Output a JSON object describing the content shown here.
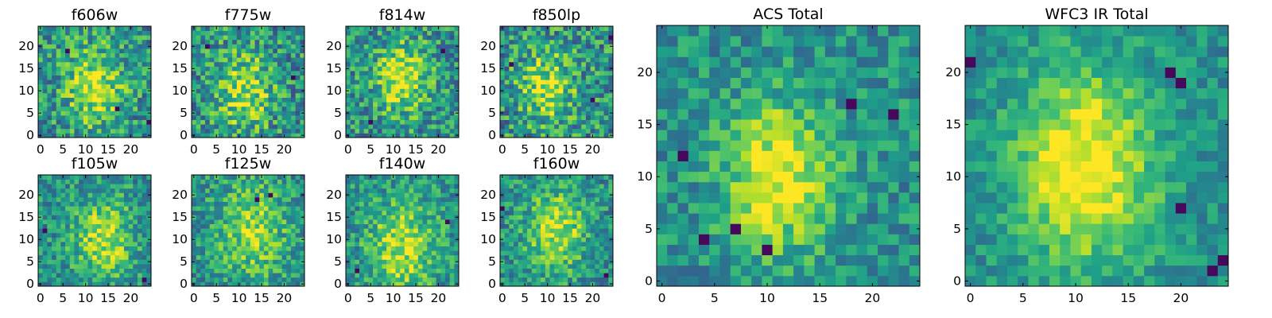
{
  "chart_data": [
    {
      "type": "heatmap",
      "title": "f606w",
      "x_ticks": [
        "0",
        "5",
        "10",
        "15",
        "20"
      ],
      "y_ticks": [
        "0",
        "5",
        "10",
        "15",
        "20"
      ],
      "xlim": [
        0,
        25
      ],
      "ylim": [
        0,
        25
      ],
      "grid_size": 25,
      "colormap": "viridis",
      "peak": {
        "x": 12,
        "y": 11
      },
      "seed": 11,
      "blob_strength": 0.42,
      "noise": 0.55,
      "spread": 5,
      "dark_pixels": [
        [
          17,
          6
        ],
        [
          6,
          19
        ],
        [
          24,
          3
        ]
      ]
    },
    {
      "type": "heatmap",
      "title": "f775w",
      "x_ticks": [
        "0",
        "5",
        "10",
        "15",
        "20"
      ],
      "y_ticks": [
        "0",
        "5",
        "10",
        "15",
        "20"
      ],
      "xlim": [
        0,
        25
      ],
      "ylim": [
        0,
        25
      ],
      "grid_size": 25,
      "colormap": "viridis",
      "peak": {
        "x": 11,
        "y": 10
      },
      "seed": 23,
      "blob_strength": 0.38,
      "noise": 0.58,
      "spread": 5,
      "dark_pixels": [
        [
          3,
          20
        ],
        [
          22,
          13
        ]
      ]
    },
    {
      "type": "heatmap",
      "title": "f814w",
      "x_ticks": [
        "0",
        "5",
        "10",
        "15",
        "20"
      ],
      "y_ticks": [
        "0",
        "5",
        "10",
        "15",
        "20"
      ],
      "xlim": [
        0,
        25
      ],
      "ylim": [
        0,
        25
      ],
      "grid_size": 25,
      "colormap": "viridis",
      "peak": {
        "x": 12,
        "y": 13
      },
      "seed": 37,
      "blob_strength": 0.45,
      "noise": 0.55,
      "spread": 4.5,
      "dark_pixels": [
        [
          21,
          19
        ],
        [
          5,
          3
        ]
      ]
    },
    {
      "type": "heatmap",
      "title": "f850lp",
      "x_ticks": [
        "0",
        "5",
        "10",
        "15",
        "20"
      ],
      "y_ticks": [
        "0",
        "5",
        "10",
        "15",
        "20"
      ],
      "xlim": [
        0,
        25
      ],
      "ylim": [
        0,
        25
      ],
      "grid_size": 25,
      "colormap": "viridis",
      "peak": {
        "x": 10,
        "y": 11
      },
      "seed": 41,
      "blob_strength": 0.4,
      "noise": 0.6,
      "spread": 4.5,
      "dark_pixels": [
        [
          2,
          16
        ],
        [
          20,
          8
        ],
        [
          24,
          22
        ]
      ]
    },
    {
      "type": "heatmap",
      "title": "f105w",
      "x_ticks": [
        "0",
        "5",
        "10",
        "15",
        "20"
      ],
      "y_ticks": [
        "0",
        "5",
        "10",
        "15",
        "20"
      ],
      "xlim": [
        0,
        25
      ],
      "ylim": [
        0,
        25
      ],
      "grid_size": 25,
      "colormap": "viridis",
      "peak": {
        "x": 14,
        "y": 10
      },
      "seed": 53,
      "blob_strength": 0.4,
      "noise": 0.45,
      "spread": 5,
      "dark_pixels": [
        [
          1,
          12
        ],
        [
          23,
          1
        ]
      ]
    },
    {
      "type": "heatmap",
      "title": "f125w",
      "x_ticks": [
        "0",
        "5",
        "10",
        "15",
        "20"
      ],
      "y_ticks": [
        "0",
        "5",
        "10",
        "15",
        "20"
      ],
      "xlim": [
        0,
        25
      ],
      "ylim": [
        0,
        25
      ],
      "grid_size": 25,
      "colormap": "viridis",
      "peak": {
        "x": 13,
        "y": 12
      },
      "seed": 67,
      "blob_strength": 0.35,
      "noise": 0.45,
      "spread": 6,
      "dark_pixels": [
        [
          14,
          19
        ],
        [
          17,
          20
        ]
      ]
    },
    {
      "type": "heatmap",
      "title": "f140w",
      "x_ticks": [
        "0",
        "5",
        "10",
        "15",
        "20"
      ],
      "y_ticks": [
        "0",
        "5",
        "10",
        "15",
        "20"
      ],
      "xlim": [
        0,
        25
      ],
      "ylim": [
        0,
        25
      ],
      "grid_size": 25,
      "colormap": "viridis",
      "peak": {
        "x": 12,
        "y": 8
      },
      "seed": 79,
      "blob_strength": 0.4,
      "noise": 0.45,
      "spread": 6,
      "dark_pixels": [
        [
          2,
          3
        ],
        [
          22,
          14
        ]
      ]
    },
    {
      "type": "heatmap",
      "title": "f160w",
      "x_ticks": [
        "0",
        "5",
        "10",
        "15",
        "20"
      ],
      "y_ticks": [
        "0",
        "5",
        "10",
        "15",
        "20"
      ],
      "xlim": [
        0,
        25
      ],
      "ylim": [
        0,
        25
      ],
      "grid_size": 25,
      "colormap": "viridis",
      "peak": {
        "x": 12,
        "y": 12
      },
      "seed": 83,
      "blob_strength": 0.42,
      "noise": 0.45,
      "spread": 5,
      "dark_pixels": [
        [
          23,
          2
        ],
        [
          0,
          17
        ]
      ]
    },
    {
      "type": "heatmap",
      "title": "ACS Total",
      "x_ticks": [
        "0",
        "5",
        "10",
        "15",
        "20"
      ],
      "y_ticks": [
        "0",
        "5",
        "10",
        "15",
        "20"
      ],
      "xlim": [
        0,
        25
      ],
      "ylim": [
        0,
        25
      ],
      "grid_size": 25,
      "colormap": "viridis",
      "peak": {
        "x": 11,
        "y": 10
      },
      "seed": 97,
      "blob_strength": 0.5,
      "noise": 0.38,
      "spread": 4,
      "dark_pixels": [
        [
          18,
          17
        ],
        [
          22,
          16
        ],
        [
          7,
          5
        ],
        [
          4,
          4
        ],
        [
          10,
          3
        ],
        [
          2,
          12
        ]
      ]
    },
    {
      "type": "heatmap",
      "title": "WFC3 IR Total",
      "x_ticks": [
        "0",
        "5",
        "10",
        "15",
        "20"
      ],
      "y_ticks": [
        "0",
        "5",
        "10",
        "15",
        "20"
      ],
      "xlim": [
        0,
        25
      ],
      "ylim": [
        0,
        25
      ],
      "grid_size": 25,
      "colormap": "viridis",
      "peak": {
        "x": 11,
        "y": 11
      },
      "seed": 101,
      "blob_strength": 0.55,
      "noise": 0.3,
      "spread": 5,
      "dark_pixels": [
        [
          19,
          20
        ],
        [
          20,
          19
        ],
        [
          0,
          21
        ],
        [
          23,
          1
        ],
        [
          24,
          2
        ],
        [
          20,
          7
        ]
      ]
    }
  ]
}
